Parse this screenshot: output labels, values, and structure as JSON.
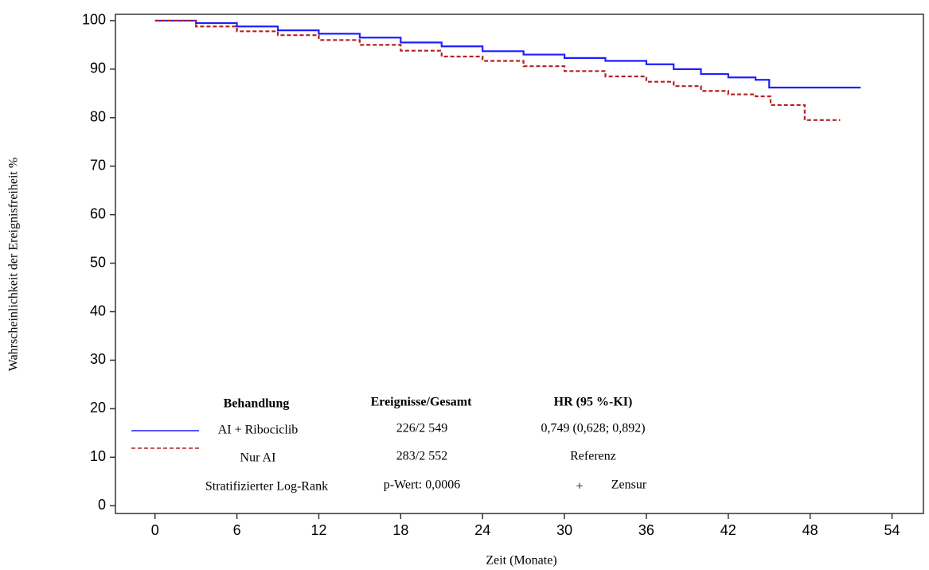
{
  "chart_data": {
    "type": "line",
    "step": true,
    "xlabel": "Zeit (Monate)",
    "ylabel": "Wahrscheinlichkeit der Ereignisfreiheit %",
    "xlim": [
      -2.9,
      56.3
    ],
    "xticks": [
      0,
      6,
      12,
      18,
      24,
      30,
      36,
      42,
      48,
      54
    ],
    "ylim": [
      -1.6,
      101.3
    ],
    "yticks": [
      0,
      10,
      20,
      30,
      40,
      50,
      60,
      70,
      80,
      90,
      100
    ],
    "series": [
      {
        "name": "AI + Ribociclib",
        "color": "#1f1fff",
        "linestyle": "solid",
        "events": "226/2 549",
        "hr": "0,749 (0,628; 0,892)",
        "x": [
          0,
          3,
          6,
          9,
          12,
          15,
          18,
          21,
          24,
          27,
          30,
          33,
          36,
          38,
          40,
          42,
          44,
          45,
          48,
          51.7
        ],
        "values": [
          100,
          99.5,
          98.8,
          98,
          97.3,
          96.5,
          95.5,
          94.7,
          93.7,
          93,
          92.3,
          91.7,
          91,
          90,
          89,
          88.3,
          87.8,
          86.2,
          86.2,
          86.2
        ]
      },
      {
        "name": "Nur AI",
        "color": "#b22222",
        "linestyle": "dashed",
        "events": "283/2 552",
        "hr": "Referenz",
        "x": [
          0,
          3,
          6,
          9,
          12,
          15,
          18,
          21,
          24,
          27,
          30,
          33,
          36,
          38,
          40,
          42,
          44,
          45,
          45.1,
          47.5,
          47.6,
          50.2
        ],
        "values": [
          100,
          98.8,
          97.8,
          97,
          96,
          95,
          93.8,
          92.6,
          91.7,
          90.6,
          89.6,
          88.5,
          87.4,
          86.5,
          85.5,
          84.8,
          84.4,
          84.4,
          82.6,
          82.6,
          79.5,
          79.5
        ]
      }
    ],
    "legend_headers": [
      "Behandlung",
      "Ereignisse/Gesamt",
      "HR (95 %-KI)"
    ],
    "test": "Stratifizierter Log-Rank",
    "p_value": "p-Wert: 0,0006",
    "censor_symbol": "+",
    "censor_label": "Zensur"
  }
}
